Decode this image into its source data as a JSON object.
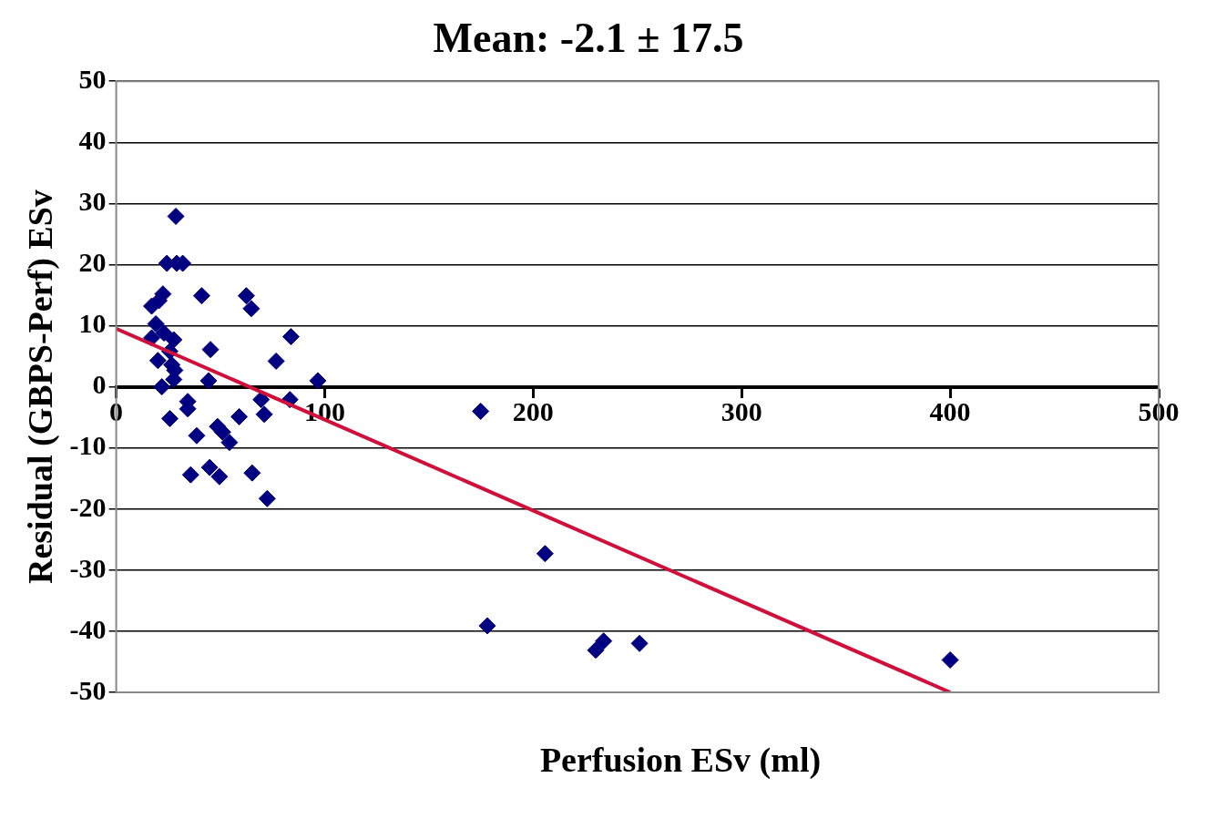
{
  "chart_data": {
    "type": "scatter",
    "title": "Mean: -2.1 ± 17.5",
    "xlabel": "Perfusion ESv (ml)",
    "ylabel": "Residual (GBPS-Perf) ESv",
    "xlim": [
      0,
      500
    ],
    "xticks": [
      0,
      100,
      200,
      300,
      400,
      500
    ],
    "ylim": [
      -50,
      50
    ],
    "yticks": [
      -50,
      -40,
      -30,
      -20,
      -10,
      0,
      10,
      20,
      30,
      40,
      50
    ],
    "grid": "y",
    "marker": "diamond",
    "series": [
      {
        "type": "scatter",
        "color": "#000080",
        "x": [
          28.6,
          24.3,
          29,
          31.9,
          17,
          22.4,
          20.5,
          41,
          62.4,
          64.8,
          19,
          19.5,
          22.9,
          27.6,
          17,
          20,
          25.7,
          26.7,
          28.1,
          45.2,
          83.8,
          76.7,
          96.7,
          21.9,
          27.6,
          44.3,
          25.7,
          34.3,
          34.3,
          38.6,
          35.7,
          44.8,
          49.5,
          48.6,
          51,
          54.3,
          59,
          65.2,
          72.4,
          71,
          69.5,
          83.3,
          174.8,
          178,
          205.7,
          230,
          233.8,
          251,
          400
        ],
        "values": [
          27.9,
          20.2,
          20.2,
          20.2,
          13.2,
          15.2,
          14.1,
          14.9,
          14.9,
          12.8,
          10.3,
          null,
          8.8,
          7.7,
          8,
          4.3,
          5.8,
          3.6,
          2.7,
          6.1,
          8.2,
          4.2,
          1,
          0,
          1.2,
          1,
          -5.2,
          -2.4,
          -3.6,
          -8,
          -14.4,
          -13.2,
          -14.7,
          -6.5,
          -7.4,
          -9.1,
          -4.9,
          -14.1,
          -18.3,
          -4.5,
          -2.1,
          -2.1,
          -4,
          -39.1,
          -27.3,
          -43.1,
          -41.6,
          -42,
          -44.7
        ]
      },
      {
        "type": "line",
        "color": "#d0103a",
        "x": [
          0,
          400
        ],
        "values": [
          9.5,
          -50
        ],
        "marker": "none"
      }
    ]
  }
}
